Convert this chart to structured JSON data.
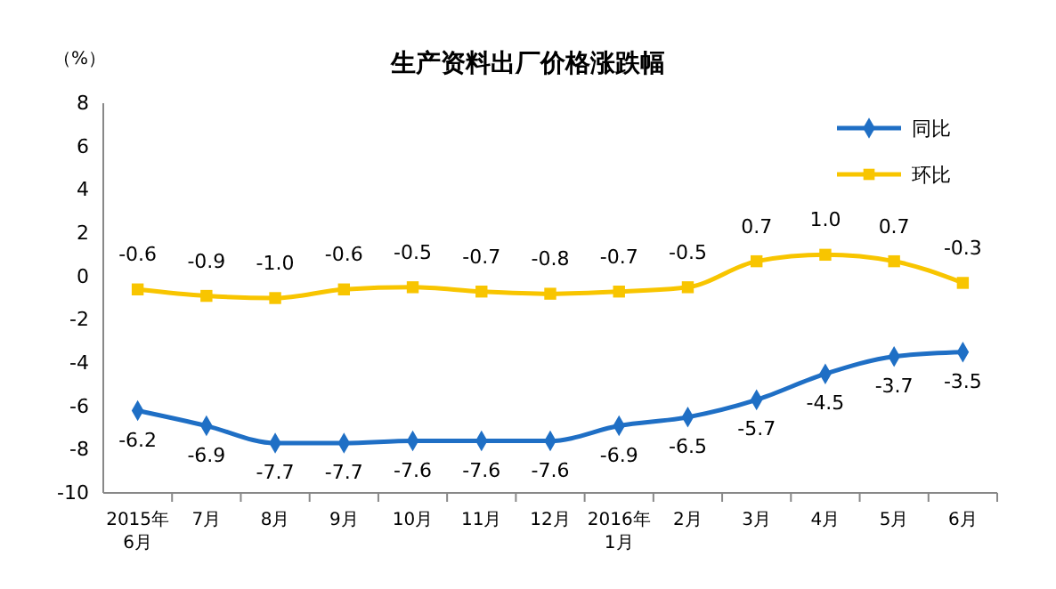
{
  "chart_data": {
    "type": "line",
    "title": "生产资料出厂价格涨跌幅",
    "ylabel": "（%）",
    "categories": [
      "2015年\n6月",
      "7月",
      "8月",
      "9月",
      "10月",
      "11月",
      "12月",
      "2016年\n1月",
      "2月",
      "3月",
      "4月",
      "5月",
      "6月"
    ],
    "ylim": [
      -10,
      8
    ],
    "yticks": [
      -10,
      -8,
      -6,
      -4,
      -2,
      0,
      2,
      4,
      6,
      8
    ],
    "grid": false,
    "legend": "top right",
    "line_style": "solid",
    "series": [
      {
        "name": "同比",
        "color": "#1f6fc5",
        "marker": "diamond",
        "values": [
          -6.2,
          -6.9,
          -7.7,
          -7.7,
          -7.6,
          -7.6,
          -7.6,
          -6.9,
          -6.5,
          -5.7,
          -4.5,
          -3.7,
          -3.5
        ],
        "value_labels": [
          "-6.2",
          "-6.9",
          "-7.7",
          "-7.7",
          "-7.6",
          "-7.6",
          "-7.6",
          "-6.9",
          "-6.5",
          "-5.7",
          "-4.5",
          "-3.7",
          "-3.5"
        ]
      },
      {
        "name": "环比",
        "color": "#f8c500",
        "marker": "square",
        "values": [
          -0.6,
          -0.9,
          -1.0,
          -0.6,
          -0.5,
          -0.7,
          -0.8,
          -0.7,
          -0.5,
          0.7,
          1.0,
          0.7,
          -0.3
        ],
        "value_labels": [
          "-0.6",
          "-0.9",
          "-1.0",
          "-0.6",
          "-0.5",
          "-0.7",
          "-0.8",
          "-0.7",
          "-0.5",
          "0.7",
          "1.0",
          "0.7",
          "-0.3"
        ]
      }
    ]
  }
}
